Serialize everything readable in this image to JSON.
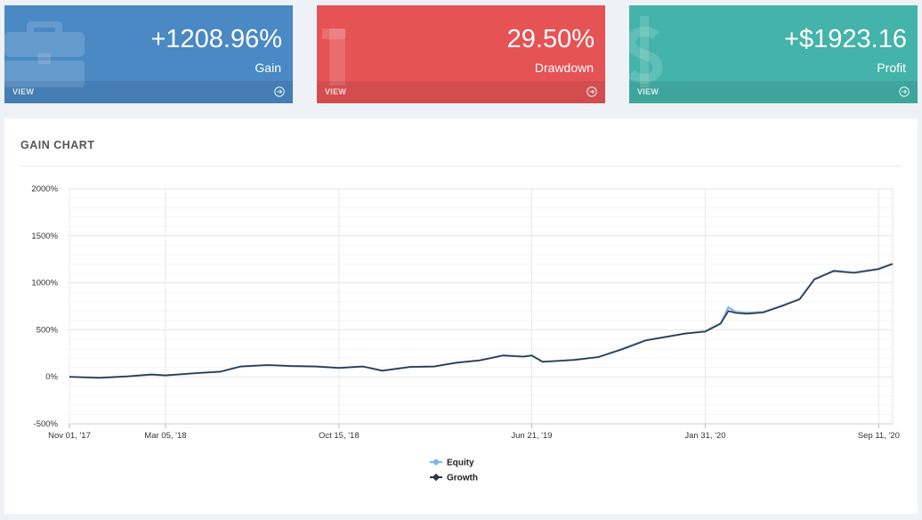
{
  "cards": [
    {
      "id": "gain",
      "value": "+1208.96%",
      "label": "Gain",
      "view": "VIEW",
      "icon": "briefcase-icon",
      "color": "#4a89c4"
    },
    {
      "id": "drawdown",
      "value": "29.50%",
      "label": "Drawdown",
      "view": "VIEW",
      "icon": "arrow-down-icon",
      "color": "#e55355"
    },
    {
      "id": "profit",
      "value": "+$1923.16",
      "label": "Profit",
      "view": "VIEW",
      "icon": "dollar-icon",
      "color": "#44b3aa"
    }
  ],
  "panel": {
    "title": "GAIN CHART"
  },
  "chart_data": {
    "type": "line",
    "title": "GAIN CHART",
    "xlabel": "",
    "ylabel": "",
    "x_range": [
      "2017-11-01",
      "2020-09-29"
    ],
    "ylim": [
      -500,
      2000
    ],
    "y_ticks": [
      -500,
      0,
      500,
      1000,
      1500,
      2000
    ],
    "y_tick_labels": [
      "-500%",
      "0%",
      "500%",
      "1000%",
      "1500%",
      "2000%"
    ],
    "x_ticks": [
      "2017-11-01",
      "2018-03-05",
      "2018-10-15",
      "2019-06-21",
      "2020-01-31",
      "2020-09-11"
    ],
    "x_tick_labels": [
      "Nov 01, '17",
      "Mar 05, '18",
      "Oct 15, '18",
      "Jun 21, '19",
      "Jan 31, '20",
      "Sep 11, '20"
    ],
    "grid": true,
    "legend": "bottom-center",
    "series": [
      {
        "name": "Equity",
        "color": "#7cb5ec",
        "points": [
          [
            "2017-11-01",
            0
          ],
          [
            "2017-12-10",
            -10
          ],
          [
            "2018-01-15",
            5
          ],
          [
            "2018-02-15",
            25
          ],
          [
            "2018-03-05",
            15
          ],
          [
            "2018-04-15",
            40
          ],
          [
            "2018-05-15",
            55
          ],
          [
            "2018-06-10",
            110
          ],
          [
            "2018-07-15",
            125
          ],
          [
            "2018-08-15",
            115
          ],
          [
            "2018-09-15",
            110
          ],
          [
            "2018-10-15",
            95
          ],
          [
            "2018-11-15",
            110
          ],
          [
            "2018-12-10",
            65
          ],
          [
            "2019-01-15",
            105
          ],
          [
            "2019-02-15",
            110
          ],
          [
            "2019-03-15",
            150
          ],
          [
            "2019-04-15",
            175
          ],
          [
            "2019-05-15",
            230
          ],
          [
            "2019-06-10",
            215
          ],
          [
            "2019-06-21",
            230
          ],
          [
            "2019-07-05",
            160
          ],
          [
            "2019-08-15",
            180
          ],
          [
            "2019-09-15",
            210
          ],
          [
            "2019-10-15",
            295
          ],
          [
            "2019-11-15",
            390
          ],
          [
            "2019-12-15",
            430
          ],
          [
            "2020-01-05",
            460
          ],
          [
            "2020-01-31",
            485
          ],
          [
            "2020-02-20",
            570
          ],
          [
            "2020-03-01",
            740
          ],
          [
            "2020-03-10",
            690
          ],
          [
            "2020-03-25",
            680
          ],
          [
            "2020-04-15",
            690
          ],
          [
            "2020-05-10",
            760
          ],
          [
            "2020-06-01",
            830
          ],
          [
            "2020-06-20",
            1040
          ],
          [
            "2020-07-15",
            1130
          ],
          [
            "2020-08-10",
            1110
          ],
          [
            "2020-09-11",
            1150
          ],
          [
            "2020-09-29",
            1205
          ]
        ]
      },
      {
        "name": "Growth",
        "color": "#2f3644",
        "points": [
          [
            "2017-11-01",
            0
          ],
          [
            "2017-12-10",
            -10
          ],
          [
            "2018-01-15",
            5
          ],
          [
            "2018-02-15",
            25
          ],
          [
            "2018-03-05",
            15
          ],
          [
            "2018-04-15",
            40
          ],
          [
            "2018-05-15",
            55
          ],
          [
            "2018-06-10",
            110
          ],
          [
            "2018-07-15",
            125
          ],
          [
            "2018-08-15",
            115
          ],
          [
            "2018-09-15",
            110
          ],
          [
            "2018-10-15",
            95
          ],
          [
            "2018-11-15",
            110
          ],
          [
            "2018-12-10",
            65
          ],
          [
            "2019-01-15",
            105
          ],
          [
            "2019-02-15",
            110
          ],
          [
            "2019-03-15",
            150
          ],
          [
            "2019-04-15",
            175
          ],
          [
            "2019-05-15",
            225
          ],
          [
            "2019-06-10",
            215
          ],
          [
            "2019-06-21",
            225
          ],
          [
            "2019-07-05",
            160
          ],
          [
            "2019-08-15",
            180
          ],
          [
            "2019-09-15",
            210
          ],
          [
            "2019-10-15",
            290
          ],
          [
            "2019-11-15",
            385
          ],
          [
            "2019-12-15",
            430
          ],
          [
            "2020-01-05",
            460
          ],
          [
            "2020-01-31",
            480
          ],
          [
            "2020-02-20",
            565
          ],
          [
            "2020-03-01",
            700
          ],
          [
            "2020-03-10",
            680
          ],
          [
            "2020-03-25",
            670
          ],
          [
            "2020-04-15",
            685
          ],
          [
            "2020-05-10",
            755
          ],
          [
            "2020-06-01",
            825
          ],
          [
            "2020-06-20",
            1035
          ],
          [
            "2020-07-15",
            1125
          ],
          [
            "2020-08-10",
            1105
          ],
          [
            "2020-09-11",
            1145
          ],
          [
            "2020-09-29",
            1200
          ]
        ]
      }
    ]
  }
}
